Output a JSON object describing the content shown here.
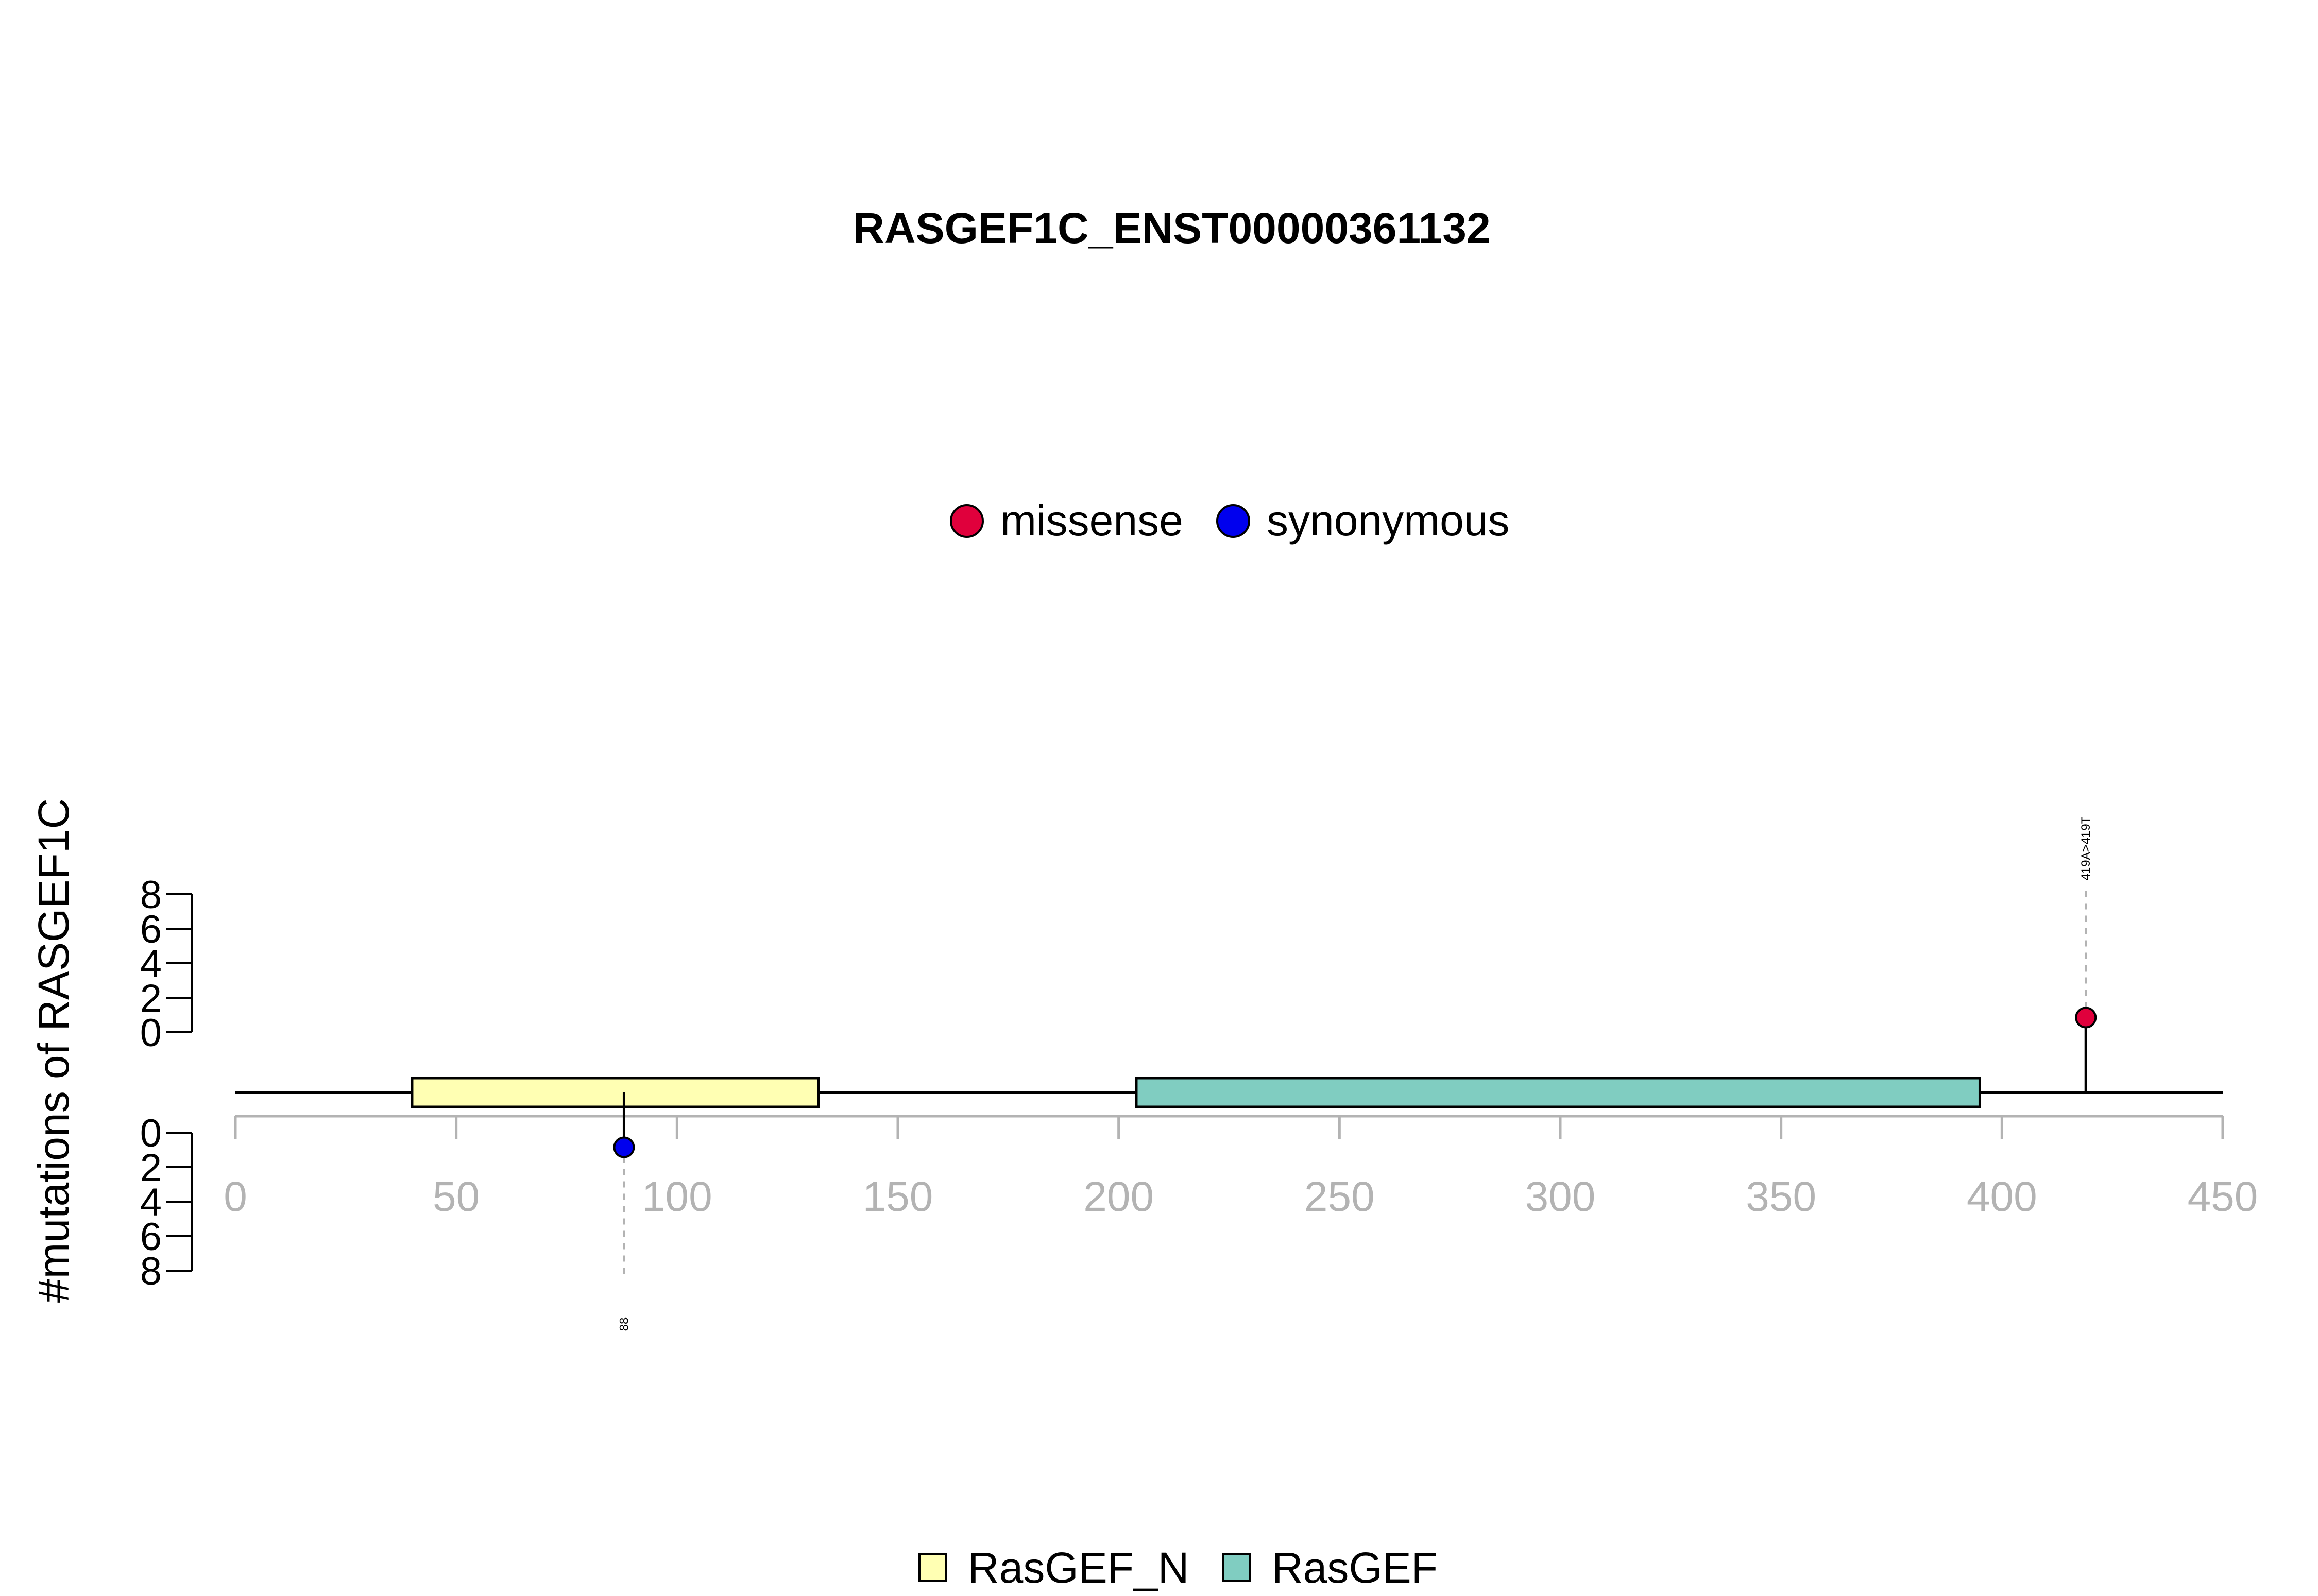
{
  "chart_data": {
    "type": "lollipop",
    "title": "RASGEF1C_ENST00000361132",
    "ylabel": "#mutations of RASGEF1C",
    "xlim": [
      0,
      450
    ],
    "xticks": [
      "0",
      "50",
      "100",
      "150",
      "200",
      "250",
      "300",
      "350",
      "400",
      "450"
    ],
    "ylim": [
      0,
      8
    ],
    "yticks": [
      "0",
      "2",
      "4",
      "6",
      "8"
    ],
    "mutation_legend": [
      {
        "name": "missense",
        "color": "#e0003c"
      },
      {
        "name": "synonymous",
        "color": "#0000ee"
      }
    ],
    "domain_legend": [
      {
        "name": "RasGEF_N",
        "color": "#ffffb3"
      },
      {
        "name": "RasGEF",
        "color": "#80cdc1"
      }
    ],
    "domains": [
      {
        "name": "RasGEF_N",
        "start": 40,
        "end": 132
      },
      {
        "name": "RasGEF",
        "start": 204,
        "end": 395
      }
    ],
    "mutations": [
      {
        "position": 88,
        "count": 1,
        "type": "synonymous",
        "label": "88",
        "side": "bottom"
      },
      {
        "position": 419,
        "count": 1,
        "type": "missense",
        "label": "419A>419T",
        "side": "top"
      }
    ]
  }
}
